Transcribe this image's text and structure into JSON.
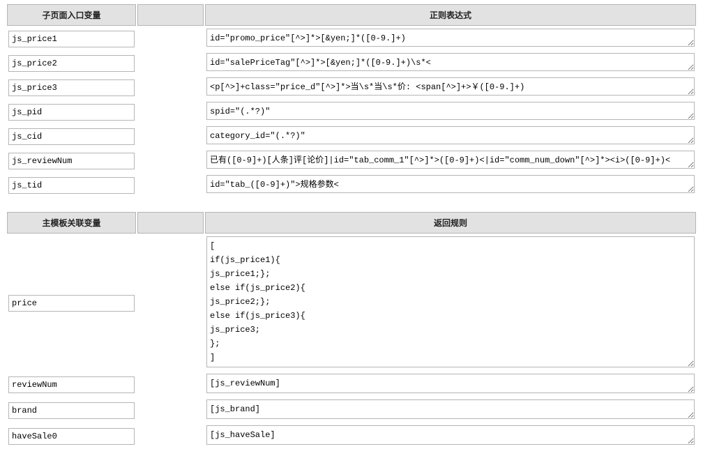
{
  "table1": {
    "colA": "子页面入口变量",
    "colB": "正则表达式",
    "rows": [
      {
        "variable": "js_price1",
        "regex": "id=\"promo_price\"[^>]*>[&yen;]*([0-9.]+)"
      },
      {
        "variable": "js_price2",
        "regex": "id=\"salePriceTag\"[^>]*>[&yen;]*([0-9.]+)\\s*<"
      },
      {
        "variable": "js_price3",
        "regex": "<p[^>]+class=\"price_d\"[^>]*>当\\s*当\\s*价: <span[^>]+>￥([0-9.]+)"
      },
      {
        "variable": "js_pid",
        "regex": "spid=\"(.*?)\""
      },
      {
        "variable": "js_cid",
        "regex": "category_id=\"(.*?)\""
      },
      {
        "variable": "js_reviewNum",
        "regex": "已有([0-9]+)[人条]评[论价]|id=\"tab_comm_1\"[^>]*>([0-9]+)<|id=\"comm_num_down\"[^>]*><i>([0-9]+)<"
      },
      {
        "variable": "js_tid",
        "regex": "id=\"tab_([0-9]+)\">规格参数<"
      }
    ]
  },
  "table2": {
    "colA": "主模板关联变量",
    "colB": "返回规则",
    "rows": [
      {
        "variable": "price",
        "rule": "[\nif(js_price1){\njs_price1;};\nelse if(js_price2){\njs_price2;};\nelse if(js_price3){\njs_price3;\n};\n]",
        "lines": 9
      },
      {
        "variable": "reviewNum",
        "rule": "[js_reviewNum]",
        "lines": 1
      },
      {
        "variable": "brand",
        "rule": "[js_brand]",
        "lines": 1
      },
      {
        "variable": "haveSale0",
        "rule": "[js_haveSale]",
        "lines": 1
      }
    ]
  },
  "style": {
    "header_bg": "#e2e2e2",
    "border_color": "#b5b5b5",
    "font_mono": "Courier New"
  }
}
